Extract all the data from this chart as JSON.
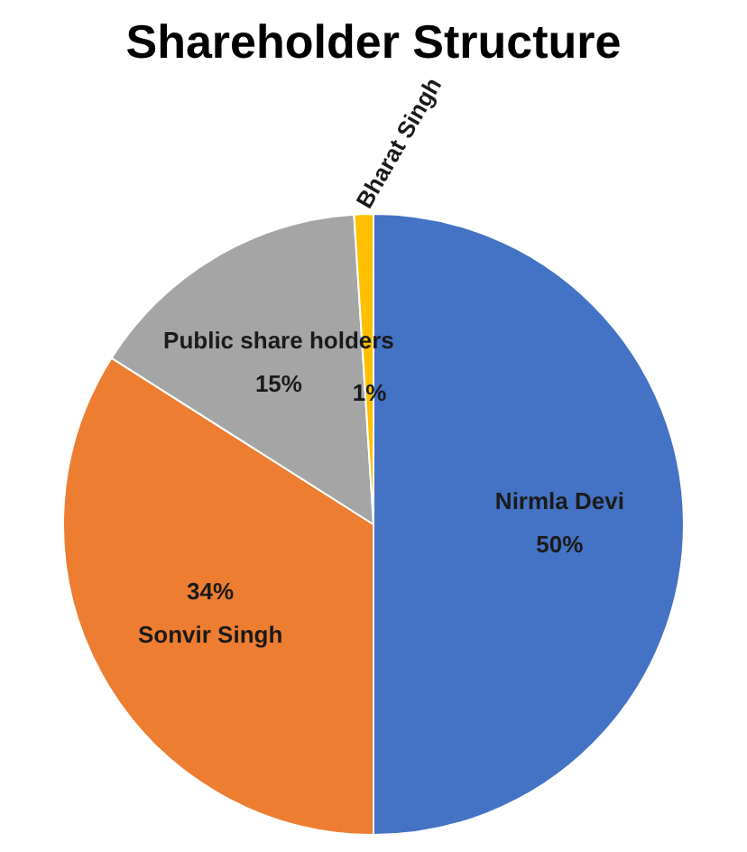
{
  "chart_data": {
    "type": "pie",
    "title": "Shareholder Structure",
    "categories": [
      "Nirmla Devi",
      "Sonvir Singh",
      "Public share holders",
      "Bharat Singh"
    ],
    "values": [
      50,
      34,
      15,
      1
    ],
    "colors": [
      "#4472c4",
      "#ed7d31",
      "#a5a5a5",
      "#ffc000"
    ],
    "value_labels": [
      "50%",
      "34%",
      "15%",
      "1%"
    ],
    "legend": false
  }
}
